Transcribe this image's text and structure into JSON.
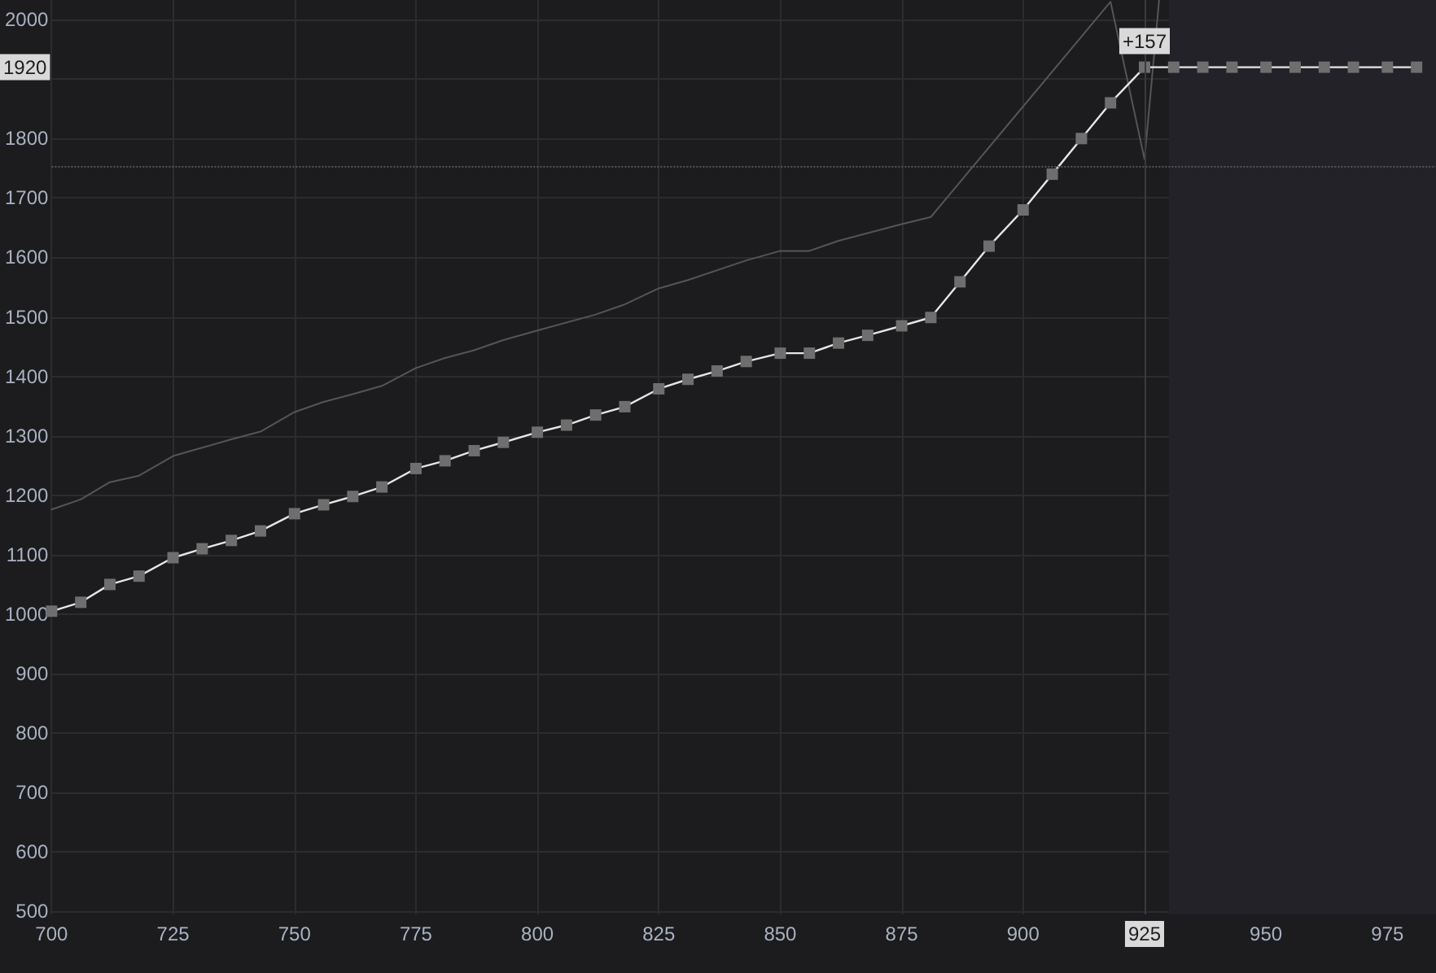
{
  "chart_data": {
    "type": "line",
    "series": [
      {
        "color": "#555555",
        "line_style": "solid",
        "marker": "none",
        "x": [
          700,
          706,
          712,
          718,
          725,
          731,
          737,
          743,
          750,
          756,
          762,
          768,
          775,
          781,
          787,
          793,
          800,
          812,
          818,
          825,
          831,
          843,
          850,
          856,
          862,
          875,
          881,
          918,
          925,
          928
        ],
        "values": [
          1176,
          1193,
          1222,
          1233,
          1266,
          1280,
          1294,
          1307,
          1340,
          1357,
          1370,
          1384,
          1414,
          1431,
          1444,
          1461,
          1477,
          1504,
          1521,
          1548,
          1562,
          1595,
          1611,
          1611,
          1628,
          1656,
          1668,
          2030,
          1765,
          2033
        ]
      },
      {
        "color": "#e6e6e6",
        "line_style": "solid",
        "marker": "square",
        "x": [
          700,
          706,
          712,
          718,
          725,
          731,
          737,
          743,
          750,
          756,
          762,
          768,
          775,
          781,
          787,
          793,
          800,
          806,
          812,
          818,
          825,
          831,
          837,
          843,
          850,
          856,
          862,
          868,
          875,
          881,
          887,
          893,
          900,
          906,
          912,
          918,
          925,
          931,
          937,
          943,
          950,
          956,
          962,
          968,
          975,
          981
        ],
        "values": [
          1005,
          1020,
          1050,
          1064,
          1095,
          1110,
          1124,
          1140,
          1169,
          1184,
          1198,
          1214,
          1245,
          1258,
          1275,
          1289,
          1306,
          1318,
          1335,
          1349,
          1379,
          1395,
          1409,
          1425,
          1439,
          1439,
          1456,
          1469,
          1485,
          1499,
          1559,
          1619,
          1680,
          1740,
          1800,
          1860,
          1920,
          1920,
          1920,
          1920,
          1920,
          1920,
          1920,
          1920,
          1920,
          1920
        ]
      }
    ],
    "xlim": [
      700,
      985
    ],
    "xticks": [
      700,
      725,
      750,
      775,
      800,
      825,
      850,
      875,
      900,
      925,
      950,
      975
    ],
    "ylim": [
      495,
      2033
    ],
    "yticks": [
      500,
      600,
      700,
      800,
      900,
      1000,
      1100,
      1200,
      1300,
      1400,
      1500,
      1600,
      1700,
      1800,
      {
        "value": 1900,
        "label": null
      },
      2000
    ],
    "grid": true,
    "ref_lines": [
      {
        "axis": "y",
        "value": 1754,
        "line_style": "dotted",
        "color": "#555555"
      },
      {
        "axis": "x",
        "value": 925,
        "label": "925",
        "color": "#3a3a3a"
      }
    ],
    "bands": [
      {
        "axis": "x",
        "from": 930,
        "to": 985,
        "color": "#222228"
      }
    ],
    "annotations": [
      {
        "text": "+157",
        "x": 925,
        "y": 1920
      },
      {
        "text": "1920",
        "y": 1920
      }
    ]
  }
}
